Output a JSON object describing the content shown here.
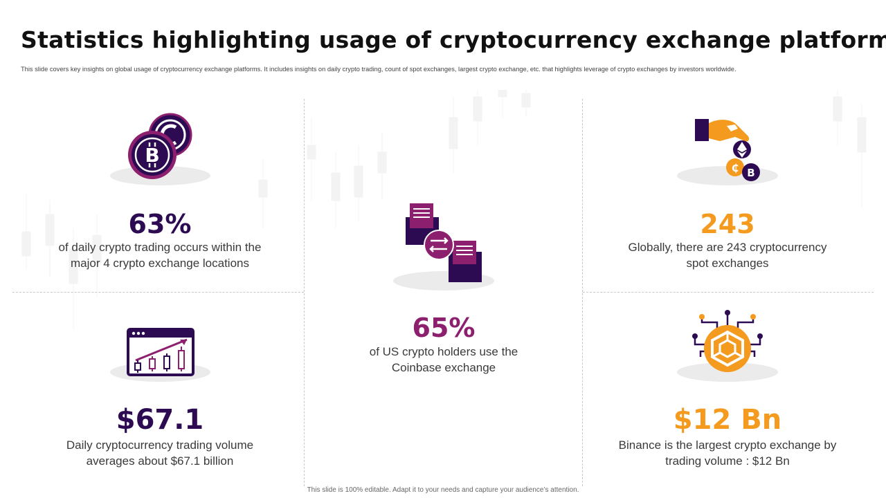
{
  "title": "Statistics highlighting usage of cryptocurrency exchange platforms",
  "subtitle": "This slide covers key insights on global usage of cryptocurrency exchange platforms. It includes insights on daily crypto trading, count of spot exchanges, largest crypto exchange, etc. that highlights leverage of crypto exchanges by investors worldwide.",
  "colors": {
    "purple_dark": "#2d0b52",
    "purple_accent": "#8c1f6e",
    "orange": "#f39a1f"
  },
  "stats": [
    {
      "value": "63%",
      "description_line1": "of daily crypto trading occurs within the",
      "description_line2": "major 4 crypto exchange locations",
      "icon": "crypto-coins-icon",
      "color": "#2d0b52"
    },
    {
      "value": "65%",
      "description_line1": "of US crypto holders use the",
      "description_line2": "Coinbase exchange",
      "icon": "exchange-transfer-icon",
      "color": "#8c1f6e"
    },
    {
      "value": "243",
      "description_line1": "Globally, there are 243 cryptocurrency",
      "description_line2": "spot exchanges",
      "icon": "hand-dropping-coins-icon",
      "color": "#f39a1f"
    },
    {
      "value": "$67.1",
      "description_line1": "Daily cryptocurrency trading volume",
      "description_line2": "averages about $67.1 billion",
      "icon": "trading-chart-icon",
      "color": "#2d0b52"
    },
    {
      "value": "$12 Bn",
      "description_line1": "Binance is the largest crypto exchange by",
      "description_line2": "trading volume : $12 Bn",
      "icon": "binance-circuit-icon",
      "color": "#f39a1f"
    }
  ],
  "footer": "This slide is 100% editable. Adapt it to your needs and capture your audience’s attention."
}
